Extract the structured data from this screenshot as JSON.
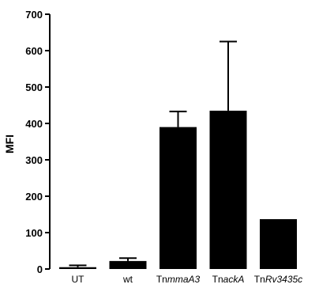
{
  "chart_data": {
    "type": "bar",
    "title": "",
    "xlabel": "",
    "ylabel": "MFI",
    "ylim": [
      0,
      700
    ],
    "yticks": [
      0,
      100,
      200,
      300,
      400,
      500,
      600,
      700
    ],
    "grid": false,
    "legend": "none",
    "categories": [
      {
        "prefix": "UT",
        "italic": ""
      },
      {
        "prefix": "wt",
        "italic": ""
      },
      {
        "prefix": "Tn",
        "italic": "mmaA3"
      },
      {
        "prefix": "Tn",
        "italic": "ackA"
      },
      {
        "prefix": "Tn",
        "italic": "Rv3435c"
      }
    ],
    "values": [
      5,
      22,
      390,
      435,
      137
    ],
    "error_upper": [
      10,
      30,
      433,
      625,
      137
    ],
    "bar_color": "#000000"
  }
}
